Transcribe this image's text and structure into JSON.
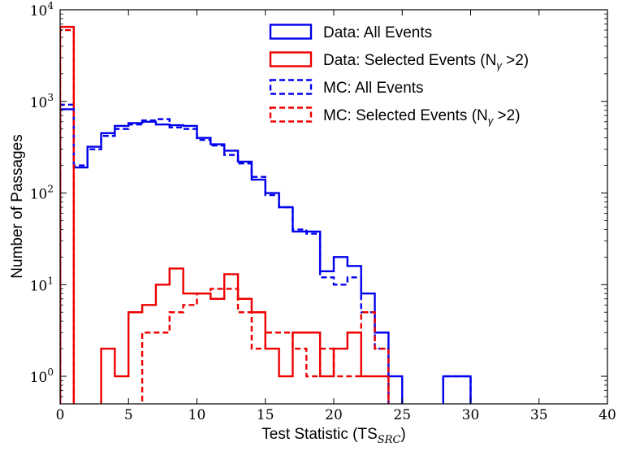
{
  "chart_data": {
    "type": "step",
    "xlabel": "Test Statistic (TS",
    "xlabel_subscript": "SRC",
    "xlabel_suffix": ")",
    "ylabel": "Number of Passages",
    "xlim": [
      0,
      40
    ],
    "ylim": [
      0.5,
      10000
    ],
    "y_scale": "log",
    "grid": false,
    "legend_position": "top-right",
    "x_ticks": [
      {
        "value": 0,
        "label": "0"
      },
      {
        "value": 5,
        "label": "5"
      },
      {
        "value": 10,
        "label": "10"
      },
      {
        "value": 15,
        "label": "15"
      },
      {
        "value": 20,
        "label": "20"
      },
      {
        "value": 25,
        "label": "25"
      },
      {
        "value": 30,
        "label": "30"
      },
      {
        "value": 35,
        "label": "35"
      },
      {
        "value": 40,
        "label": "40"
      }
    ],
    "y_ticks": [
      {
        "value": 1,
        "base": "10",
        "exp": "0"
      },
      {
        "value": 10,
        "base": "10",
        "exp": "1"
      },
      {
        "value": 100,
        "base": "10",
        "exp": "2"
      },
      {
        "value": 1000,
        "base": "10",
        "exp": "3"
      },
      {
        "value": 10000,
        "base": "10",
        "exp": "4"
      }
    ],
    "series": [
      {
        "name": "Data: All Events",
        "legend_prefix": "Data: All Events",
        "legend_subscript": "",
        "legend_suffix": "",
        "color": "#0000ee",
        "dashed": false,
        "edges": [
          0,
          1,
          2,
          3,
          4,
          5,
          6,
          7,
          8,
          9,
          10,
          11,
          12,
          13,
          14,
          15,
          16,
          17,
          18,
          19,
          20,
          21,
          22,
          23,
          24,
          25,
          26,
          27,
          28,
          29,
          30
        ],
        "counts": [
          820,
          190,
          320,
          450,
          540,
          580,
          600,
          560,
          550,
          540,
          400,
          340,
          290,
          220,
          140,
          100,
          70,
          38,
          38,
          14,
          20,
          16,
          8,
          3,
          1,
          0,
          0,
          0,
          1,
          1
        ]
      },
      {
        "name": "Data: Selected Events (N",
        "legend_prefix": "Data: Selected Events (N",
        "legend_subscript": "γ",
        "legend_suffix": " >2)",
        "color": "#ee0000",
        "dashed": false,
        "edges": [
          0,
          1,
          2,
          3,
          4,
          5,
          6,
          7,
          8,
          9,
          10,
          11,
          12,
          13,
          14,
          15,
          16,
          17,
          18,
          19,
          20,
          21,
          22,
          23,
          24
        ],
        "counts": [
          6500,
          0,
          0,
          2,
          1,
          5,
          6,
          10,
          15,
          8,
          8,
          7,
          13,
          7,
          5,
          2,
          1,
          3,
          3,
          1,
          2,
          3,
          1,
          1
        ]
      },
      {
        "name": "MC: All Events",
        "legend_prefix": "MC: All Events",
        "legend_subscript": "",
        "legend_suffix": "",
        "color": "#0000ee",
        "dashed": true,
        "edges": [
          0,
          1,
          2,
          3,
          4,
          5,
          6,
          7,
          8,
          9,
          10,
          11,
          12,
          13,
          14,
          15,
          16,
          17,
          18,
          19,
          20,
          21,
          22,
          23,
          24,
          25,
          26,
          27,
          28,
          29,
          30
        ],
        "counts": [
          920,
          200,
          300,
          420,
          500,
          560,
          620,
          640,
          520,
          500,
          380,
          330,
          260,
          210,
          150,
          95,
          70,
          40,
          36,
          12,
          10,
          12,
          5,
          2,
          0,
          0,
          0,
          0,
          1,
          1
        ]
      },
      {
        "name": "MC: Selected Events (N",
        "legend_prefix": "MC: Selected Events (N",
        "legend_subscript": "γ",
        "legend_suffix": " >2)",
        "color": "#ee0000",
        "dashed": true,
        "edges": [
          0,
          1,
          2,
          3,
          4,
          5,
          6,
          7,
          8,
          9,
          10,
          11,
          12,
          13,
          14,
          15,
          16,
          17,
          18,
          19,
          20,
          21,
          22,
          23,
          24
        ],
        "counts": [
          6000,
          0,
          0,
          0,
          0,
          0,
          3,
          3,
          5,
          6,
          8,
          9,
          9,
          5,
          2,
          3,
          3,
          2,
          1,
          2,
          1,
          1,
          5,
          2
        ]
      }
    ]
  }
}
